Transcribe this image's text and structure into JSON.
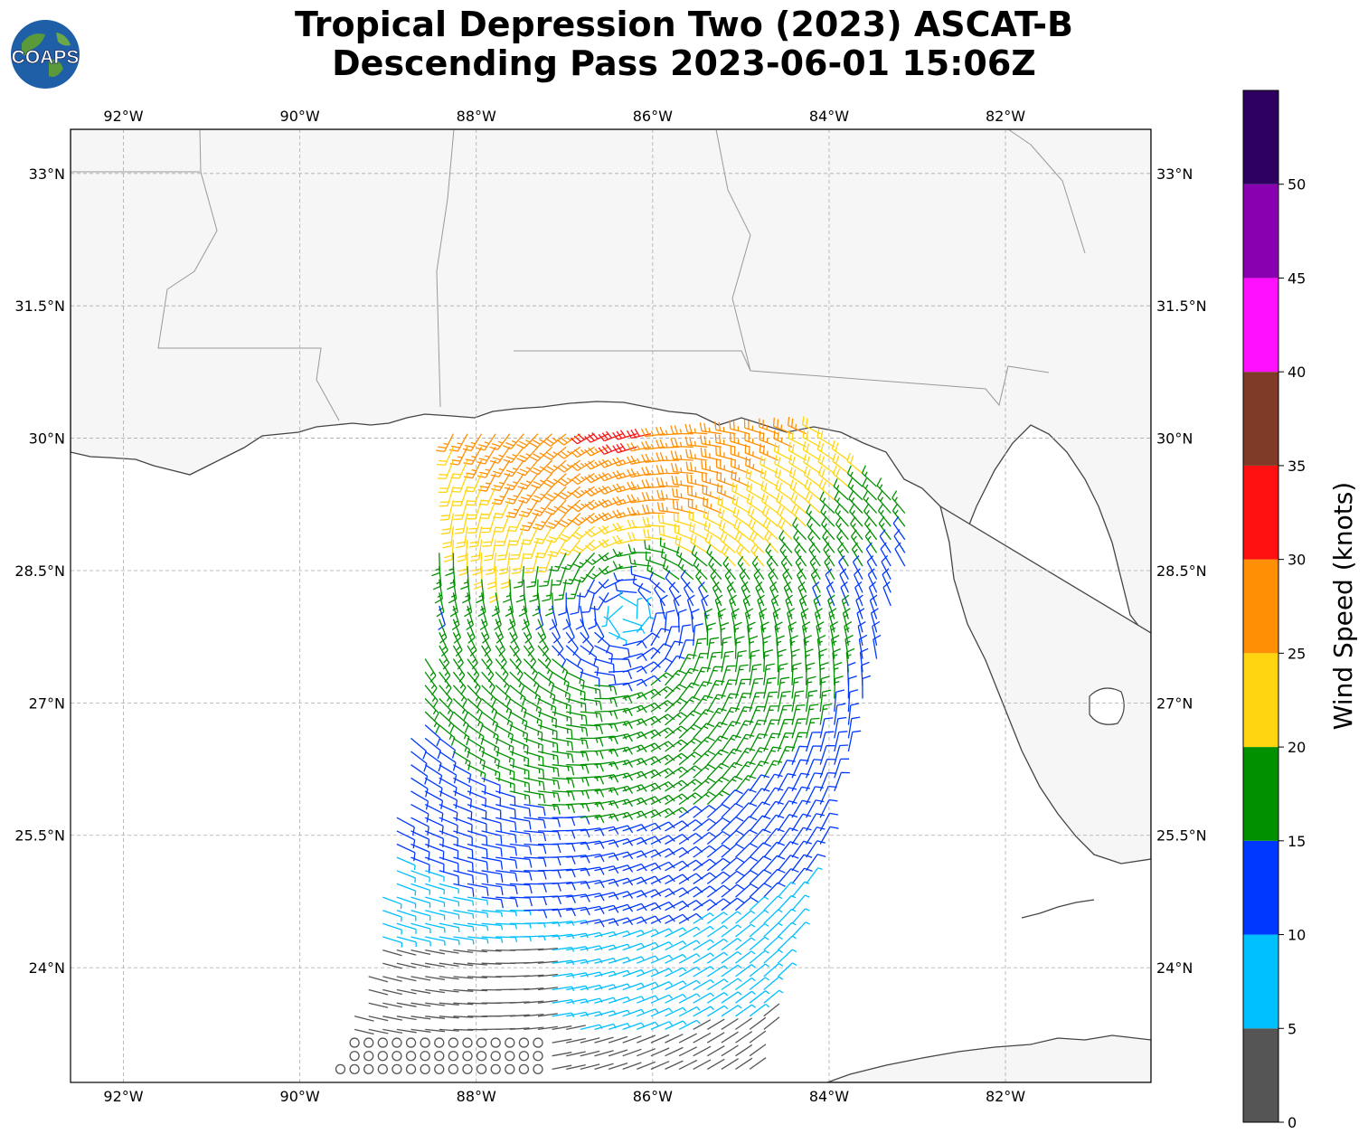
{
  "title": {
    "line1": "Tropical Depression Two (2023) ASCAT-B",
    "line2": "Descending Pass 2023-06-01 15:06Z"
  },
  "logo": {
    "text": "COAPS",
    "icon": "globe-icon"
  },
  "map": {
    "lon_range": [
      -92.6,
      -80.35
    ],
    "lat_range": [
      22.7,
      33.5
    ],
    "lon_ticks": [
      {
        "value": -92,
        "label": "92°W"
      },
      {
        "value": -90,
        "label": "90°W"
      },
      {
        "value": -88,
        "label": "88°W"
      },
      {
        "value": -86,
        "label": "86°W"
      },
      {
        "value": -84,
        "label": "84°W"
      },
      {
        "value": -82,
        "label": "82°W"
      }
    ],
    "lat_ticks": [
      {
        "value": 33,
        "label": "33°N"
      },
      {
        "value": 31.5,
        "label": "31.5°N"
      },
      {
        "value": 30,
        "label": "30°N"
      },
      {
        "value": 28.5,
        "label": "28.5°N"
      },
      {
        "value": 27,
        "label": "27°N"
      },
      {
        "value": 25.5,
        "label": "25.5°N"
      },
      {
        "value": 24,
        "label": "24°N"
      }
    ],
    "grid": true,
    "storm_center": {
      "lon": -86.3,
      "lat": 28.0
    }
  },
  "colorbar": {
    "title": "Wind Speed (knots)",
    "bins": [
      {
        "min": 0,
        "max": 5,
        "color": "#555555"
      },
      {
        "min": 5,
        "max": 10,
        "color": "#00bfff"
      },
      {
        "min": 10,
        "max": 15,
        "color": "#0038ff"
      },
      {
        "min": 15,
        "max": 20,
        "color": "#009000"
      },
      {
        "min": 20,
        "max": 25,
        "color": "#ffd511"
      },
      {
        "min": 25,
        "max": 30,
        "color": "#ff9005"
      },
      {
        "min": 30,
        "max": 35,
        "color": "#ff1010"
      },
      {
        "min": 35,
        "max": 40,
        "color": "#803a28"
      },
      {
        "min": 40,
        "max": 45,
        "color": "#ff10ff"
      },
      {
        "min": 45,
        "max": 50,
        "color": "#8800b0"
      },
      {
        "min": 50,
        "max": 55,
        "color": "#2d0060"
      }
    ],
    "ticks": [
      "0",
      "5",
      "10",
      "15",
      "20",
      "25",
      "30",
      "35",
      "40",
      "45",
      "50"
    ]
  }
}
